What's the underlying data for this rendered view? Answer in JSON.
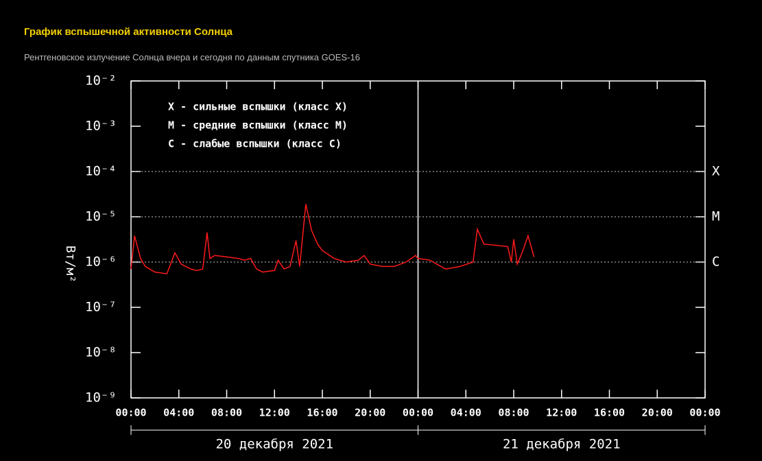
{
  "header": {
    "title": "График вспышечной активности Солнца",
    "subtitle": "Рентгеновское излучение Солнца вчера и сегодня по данным спутника GOES-16"
  },
  "chart_data": {
    "type": "line",
    "log_y": true,
    "ylabel": "Вт/м²",
    "legend_lines": [
      "X - сильные вспышки (класс X)",
      "M - средние вспышки (класс M)",
      "C - слабые вспышки (класс C)"
    ],
    "xlim": [
      0,
      48
    ],
    "xticks": [
      {
        "value": 0,
        "label": "00:00"
      },
      {
        "value": 4,
        "label": "04:00"
      },
      {
        "value": 8,
        "label": "08:00"
      },
      {
        "value": 12,
        "label": "12:00"
      },
      {
        "value": 16,
        "label": "16:00"
      },
      {
        "value": 20,
        "label": "20:00"
      },
      {
        "value": 24,
        "label": "00:00"
      },
      {
        "value": 28,
        "label": "04:00"
      },
      {
        "value": 32,
        "label": "08:00"
      },
      {
        "value": 36,
        "label": "12:00"
      },
      {
        "value": 40,
        "label": "16:00"
      },
      {
        "value": 44,
        "label": "20:00"
      },
      {
        "value": 48,
        "label": "00:00"
      }
    ],
    "ylim": [
      1e-09,
      0.01
    ],
    "yticks": [
      {
        "value": 1e-09,
        "label": "10⁻⁹"
      },
      {
        "value": 1e-08,
        "label": "10⁻⁸"
      },
      {
        "value": 1e-07,
        "label": "10⁻⁷"
      },
      {
        "value": 1e-06,
        "label": "10⁻⁶"
      },
      {
        "value": 1e-05,
        "label": "10⁻⁵"
      },
      {
        "value": 0.0001,
        "label": "10⁻⁴"
      },
      {
        "value": 0.001,
        "label": "10⁻³"
      },
      {
        "value": 0.01,
        "label": "10⁻²"
      }
    ],
    "class_levels": [
      {
        "value": 0.0001,
        "label": "X"
      },
      {
        "value": 1e-05,
        "label": "M"
      },
      {
        "value": 1e-06,
        "label": "C"
      }
    ],
    "day_groups": [
      {
        "label": "20 декабря 2021",
        "range": [
          0,
          24
        ]
      },
      {
        "label": "21 декабря 2021",
        "range": [
          24,
          48
        ]
      }
    ],
    "day_divider": 24,
    "series": [
      {
        "name": "GOES-16",
        "color": "#ff1a1a",
        "x": [
          0,
          0.3,
          0.8,
          1.2,
          2,
          3,
          3.67,
          4.2,
          5,
          5.5,
          6,
          6.36,
          6.6,
          7,
          8,
          9,
          9.5,
          10,
          10.5,
          11,
          12,
          12.3,
          12.8,
          13.3,
          13.8,
          14.1,
          14.62,
          15.1,
          15.6,
          16,
          17,
          18,
          19,
          19.5,
          20,
          21,
          22,
          23,
          23.8,
          24,
          25,
          26.3,
          27.5,
          28.6,
          28.96,
          29.5,
          31.5,
          31.8,
          32.0,
          32.3,
          32.7,
          33.2,
          33.7
        ],
        "values": [
          7e-07,
          3.8e-06,
          1.2e-06,
          8e-07,
          6e-07,
          5.5e-07,
          1.6e-06,
          9e-07,
          7e-07,
          6.5e-07,
          7e-07,
          4.5e-06,
          1.2e-06,
          1.4e-06,
          1.3e-06,
          1.2e-06,
          1.1e-06,
          1.2e-06,
          7e-07,
          6e-07,
          6.5e-07,
          1.1e-06,
          7e-07,
          8e-07,
          3e-06,
          8e-07,
          1.9e-05,
          5e-06,
          2.5e-06,
          1.8e-06,
          1.2e-06,
          1e-06,
          1.1e-06,
          1.4e-06,
          9e-07,
          8e-07,
          8e-07,
          1e-06,
          1.4e-06,
          1.2e-06,
          1.1e-06,
          7e-07,
          8e-07,
          1e-06,
          5.3e-06,
          2.5e-06,
          2.2e-06,
          1e-06,
          3.2e-06,
          9e-07,
          1.6e-06,
          3.8e-06,
          1.3e-06
        ]
      }
    ]
  }
}
